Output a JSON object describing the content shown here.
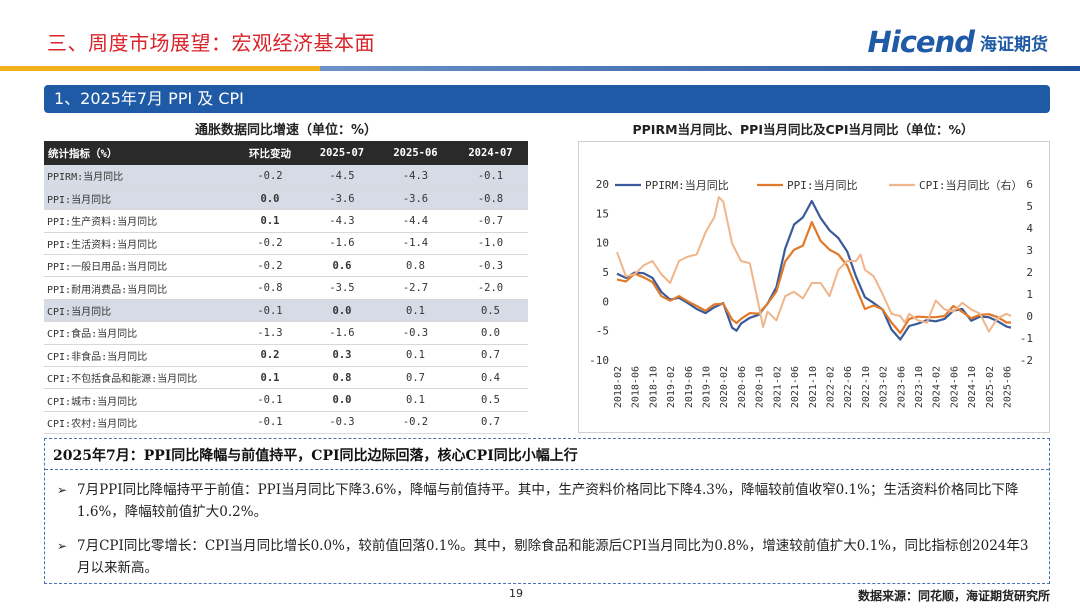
{
  "header": {
    "title": "三、周度市场展望：宏观经济基本面",
    "logo_en": "Hicend",
    "logo_cn": "海证期货"
  },
  "section": {
    "title": "1、2025年7月 PPI 及 CPI"
  },
  "table": {
    "title": "通胀数据同比增速（单位：%）",
    "headers": [
      "统计指标（%）",
      "环比变动",
      "2025-07",
      "2025-06",
      "2024-07"
    ],
    "rows": [
      {
        "name": "PPIRM:当月同比",
        "chg": "-0.2",
        "v1": "-4.5",
        "v2": "-4.3",
        "v3": "-0.1"
      },
      {
        "name": "PPI:当月同比",
        "chg": "0.0",
        "v1": "-3.6",
        "v2": "-3.6",
        "v3": "-0.8"
      },
      {
        "name": "PPI:生产资料:当月同比",
        "chg": "0.1",
        "v1": "-4.3",
        "v2": "-4.4",
        "v3": "-0.7"
      },
      {
        "name": "PPI:生活资料:当月同比",
        "chg": "-0.2",
        "v1": "-1.6",
        "v2": "-1.4",
        "v3": "-1.0"
      },
      {
        "name": "PPI:一般日用品:当月同比",
        "chg": "-0.2",
        "v1": "0.6",
        "v2": "0.8",
        "v3": "-0.3"
      },
      {
        "name": "PPI:耐用消费品:当月同比",
        "chg": "-0.8",
        "v1": "-3.5",
        "v2": "-2.7",
        "v3": "-2.0"
      },
      {
        "name": "CPI:当月同比",
        "chg": "-0.1",
        "v1": "0.0",
        "v2": "0.1",
        "v3": "0.5"
      },
      {
        "name": "CPI:食品:当月同比",
        "chg": "-1.3",
        "v1": "-1.6",
        "v2": "-0.3",
        "v3": "0.0"
      },
      {
        "name": "CPI:非食品:当月同比",
        "chg": "0.2",
        "v1": "0.3",
        "v2": "0.1",
        "v3": "0.7"
      },
      {
        "name": "CPI:不包括食品和能源:当月同比",
        "chg": "0.1",
        "v1": "0.8",
        "v2": "0.7",
        "v3": "0.4"
      },
      {
        "name": "CPI:城市:当月同比",
        "chg": "-0.1",
        "v1": "0.0",
        "v2": "0.1",
        "v3": "0.5"
      },
      {
        "name": "CPI:农村:当月同比",
        "chg": "-0.1",
        "v1": "-0.3",
        "v2": "-0.2",
        "v3": "0.7"
      }
    ]
  },
  "chart_data": {
    "type": "line",
    "title": "PPIRM当月同比、PPI当月同比及CPI当月同比（单位：%）",
    "x_ticks": [
      "2018-02",
      "2018-06",
      "2018-10",
      "2019-02",
      "2019-06",
      "2019-10",
      "2020-02",
      "2020-06",
      "2020-10",
      "2021-02",
      "2021-06",
      "2021-10",
      "2022-02",
      "2022-06",
      "2022-10",
      "2023-02",
      "2023-06",
      "2023-10",
      "2024-02",
      "2024-06",
      "2024-10",
      "2025-02",
      "2025-06"
    ],
    "ylim_left": [
      -10,
      20
    ],
    "yticks_left": [
      "20",
      "15",
      "10",
      "5",
      "0",
      "-5",
      "-10"
    ],
    "ylim_right": [
      -2,
      6
    ],
    "yticks_right": [
      "6",
      "5",
      "4",
      "3",
      "2",
      "1",
      "0",
      "-1",
      "-2"
    ],
    "grid": false,
    "legend_position": "top",
    "series": [
      {
        "name": "PPIRM:当月同比",
        "color": "#3a5a99",
        "axis": "left",
        "x": [
          "2018-02",
          "2018-04",
          "2018-06",
          "2018-08",
          "2018-10",
          "2018-12",
          "2019-02",
          "2019-04",
          "2019-06",
          "2019-08",
          "2019-10",
          "2019-12",
          "2020-02",
          "2020-04",
          "2020-05",
          "2020-06",
          "2020-08",
          "2020-10",
          "2020-12",
          "2021-02",
          "2021-04",
          "2021-06",
          "2021-08",
          "2021-10",
          "2021-12",
          "2022-02",
          "2022-04",
          "2022-06",
          "2022-08",
          "2022-10",
          "2022-12",
          "2023-02",
          "2023-04",
          "2023-06",
          "2023-08",
          "2023-10",
          "2023-12",
          "2024-02",
          "2024-04",
          "2024-06",
          "2024-08",
          "2024-10",
          "2024-12",
          "2025-02",
          "2025-04",
          "2025-06",
          "2025-07"
        ],
        "values": [
          4.7,
          4.0,
          4.9,
          4.8,
          4.0,
          1.6,
          0.3,
          0.6,
          -0.3,
          -1.3,
          -2.0,
          -1.0,
          -0.3,
          -4.5,
          -5.0,
          -3.8,
          -2.8,
          -2.3,
          -0.4,
          2.4,
          9.0,
          13.1,
          14.3,
          17.1,
          14.2,
          12.1,
          10.8,
          8.5,
          4.2,
          0.7,
          -0.3,
          -1.4,
          -4.8,
          -6.5,
          -4.2,
          -3.8,
          -3.2,
          -3.4,
          -3.0,
          -1.6,
          -1.3,
          -3.3,
          -2.6,
          -2.7,
          -3.4,
          -4.3,
          -4.5
        ]
      },
      {
        "name": "PPI:当月同比",
        "color": "#e07a2a",
        "axis": "left",
        "x": [
          "2018-02",
          "2018-04",
          "2018-06",
          "2018-08",
          "2018-10",
          "2018-12",
          "2019-02",
          "2019-04",
          "2019-06",
          "2019-08",
          "2019-10",
          "2019-12",
          "2020-02",
          "2020-04",
          "2020-05",
          "2020-06",
          "2020-08",
          "2020-10",
          "2020-12",
          "2021-02",
          "2021-04",
          "2021-06",
          "2021-08",
          "2021-10",
          "2021-12",
          "2022-02",
          "2022-04",
          "2022-06",
          "2022-08",
          "2022-10",
          "2022-12",
          "2023-02",
          "2023-04",
          "2023-06",
          "2023-08",
          "2023-10",
          "2023-12",
          "2024-02",
          "2024-04",
          "2024-06",
          "2024-08",
          "2024-10",
          "2024-12",
          "2025-02",
          "2025-04",
          "2025-06",
          "2025-07"
        ],
        "values": [
          3.7,
          3.4,
          4.7,
          4.1,
          3.3,
          0.9,
          0.1,
          0.9,
          0.0,
          -0.8,
          -1.6,
          -0.5,
          -0.4,
          -3.1,
          -3.7,
          -3.0,
          -2.0,
          -2.1,
          -0.4,
          1.7,
          6.8,
          8.8,
          9.5,
          13.5,
          10.3,
          8.8,
          8.0,
          6.1,
          2.3,
          -1.3,
          -0.7,
          -1.4,
          -3.6,
          -5.4,
          -3.0,
          -2.6,
          -2.7,
          -2.7,
          -2.5,
          -0.8,
          -1.8,
          -2.9,
          -2.3,
          -2.2,
          -2.7,
          -3.6,
          -3.6
        ]
      },
      {
        "name": "CPI:当月同比（右）",
        "color": "#f0b58a",
        "axis": "right",
        "x": [
          "2018-02",
          "2018-04",
          "2018-06",
          "2018-08",
          "2018-10",
          "2018-12",
          "2019-02",
          "2019-04",
          "2019-06",
          "2019-08",
          "2019-10",
          "2019-12",
          "2020-01",
          "2020-02",
          "2020-04",
          "2020-06",
          "2020-08",
          "2020-10",
          "2020-11",
          "2020-12",
          "2021-02",
          "2021-04",
          "2021-06",
          "2021-08",
          "2021-10",
          "2021-12",
          "2022-02",
          "2022-04",
          "2022-06",
          "2022-08",
          "2022-09",
          "2022-10",
          "2022-12",
          "2023-02",
          "2023-04",
          "2023-06",
          "2023-07",
          "2023-08",
          "2023-10",
          "2023-12",
          "2024-02",
          "2024-04",
          "2024-06",
          "2024-08",
          "2024-10",
          "2024-12",
          "2025-02",
          "2025-04",
          "2025-06",
          "2025-07"
        ],
        "values": [
          2.9,
          1.8,
          1.9,
          2.3,
          2.5,
          1.9,
          1.5,
          2.5,
          2.7,
          2.8,
          3.8,
          4.5,
          5.4,
          5.2,
          3.3,
          2.5,
          2.4,
          0.5,
          -0.5,
          0.2,
          -0.2,
          0.9,
          1.1,
          0.8,
          1.5,
          1.5,
          0.9,
          2.1,
          2.5,
          2.5,
          2.8,
          2.1,
          1.8,
          1.0,
          0.1,
          0.0,
          -0.3,
          0.1,
          -0.2,
          -0.3,
          0.7,
          0.3,
          0.2,
          0.6,
          0.3,
          0.1,
          -0.7,
          -0.1,
          0.1,
          0.0
        ]
      }
    ]
  },
  "summary": {
    "heading": "2025年7月：PPI同比降幅与前值持平，CPI同比边际回落，核心CPI同比小幅上行",
    "bullet_mark": "➢",
    "bullets": [
      "7月PPI同比降幅持平于前值：PPI当月同比下降3.6%，降幅与前值持平。其中，生产资料价格同比下降4.3%，降幅较前值收窄0.1%；生活资料价格同比下降1.6%，降幅较前值扩大0.2%。",
      "7月CPI同比零增长：CPI当月同比增长0.0%，较前值回落0.1%。其中，剔除食品和能源后CPI当月同比为0.8%，增速较前值扩大0.1%，同比指标创2024年3月以来新高。"
    ]
  },
  "footer": {
    "page_number": "19",
    "source": "数据来源：同花顺，海证期货研究所"
  }
}
